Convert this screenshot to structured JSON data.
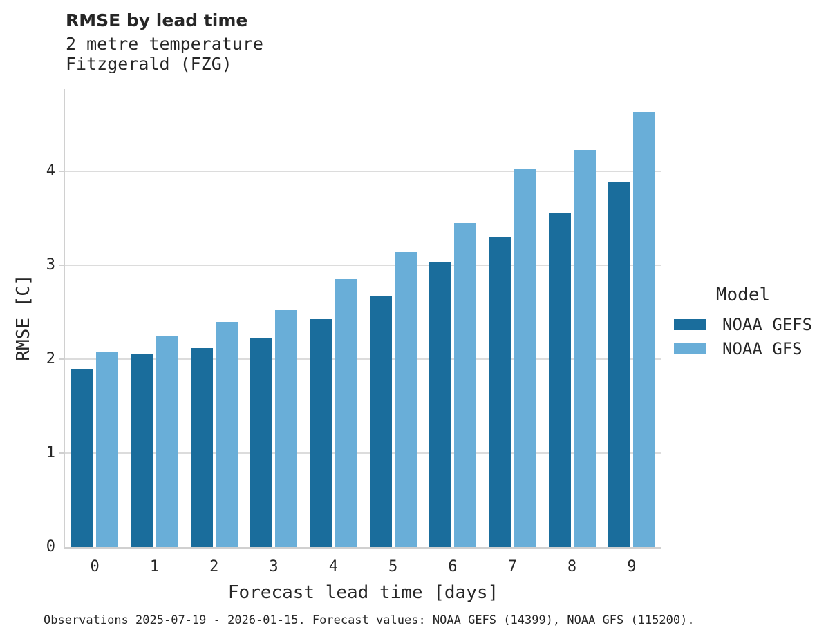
{
  "chart_data": {
    "type": "bar",
    "title": "RMSE by lead time",
    "subtitle_lines": [
      "2 metre temperature",
      "Fitzgerald (FZG)"
    ],
    "categories": [
      "0",
      "1",
      "2",
      "3",
      "4",
      "5",
      "6",
      "7",
      "8",
      "9"
    ],
    "series": [
      {
        "name": "NOAA GEFS",
        "color": "#1a6d9c",
        "values": [
          1.9,
          2.05,
          2.12,
          2.23,
          2.43,
          2.67,
          3.04,
          3.3,
          3.55,
          3.88
        ]
      },
      {
        "name": "NOAA GFS",
        "color": "#69aed8",
        "values": [
          2.07,
          2.25,
          2.4,
          2.52,
          2.85,
          3.14,
          3.45,
          4.02,
          4.23,
          4.63
        ]
      }
    ],
    "xlabel": "Forecast lead time [days]",
    "ylabel": "RMSE [C]",
    "ylim": [
      0,
      4.875
    ],
    "yticks": [
      0,
      1,
      2,
      3,
      4
    ],
    "grid": true,
    "legend_title": "Model",
    "legend_position": "right"
  },
  "footnote": "Observations 2025-07-19 - 2026-01-15. Forecast values: NOAA GEFS (14399), NOAA GFS (115200)."
}
